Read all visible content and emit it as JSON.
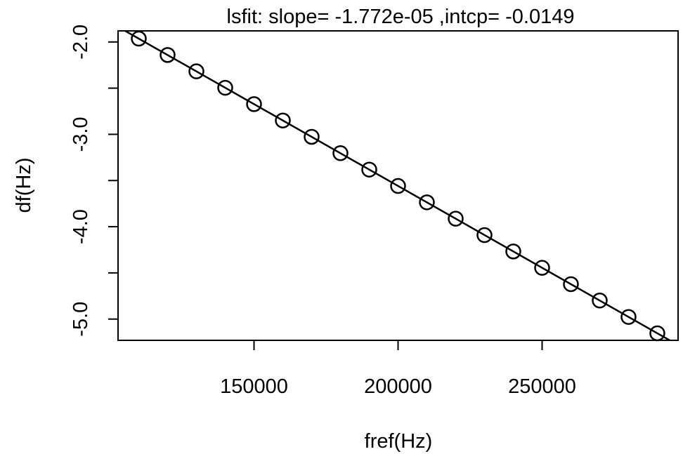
{
  "chart_data": {
    "type": "scatter",
    "title": "lsfit: slope= -1.772e-05 ,intcp= -0.0149",
    "xlabel": "fref(Hz)",
    "ylabel": "df(Hz)",
    "xlim": [
      102800,
      297200
    ],
    "ylim": [
      -5.23,
      -1.88
    ],
    "x_ticks": [
      150000,
      200000,
      250000
    ],
    "x_tick_labels": [
      "150000",
      "200000",
      "250000"
    ],
    "y_ticks": [
      -2.0,
      -2.5,
      -3.0,
      -3.5,
      -4.0,
      -4.5,
      -5.0
    ],
    "y_tick_labels": [
      "-2.0",
      "",
      "-3.0",
      "",
      "-4.0",
      "",
      "-5.0"
    ],
    "points": {
      "x": [
        110000,
        120000,
        130000,
        140000,
        150000,
        160000,
        170000,
        180000,
        190000,
        200000,
        210000,
        220000,
        230000,
        240000,
        250000,
        260000,
        270000,
        280000,
        290000
      ],
      "y": [
        -1.964,
        -2.141,
        -2.318,
        -2.496,
        -2.673,
        -2.85,
        -3.027,
        -3.204,
        -3.382,
        -3.559,
        -3.736,
        -3.913,
        -4.091,
        -4.268,
        -4.445,
        -4.622,
        -4.799,
        -4.977,
        -5.154
      ]
    },
    "fit_line": {
      "slope": -1.772e-05,
      "intercept": -0.0149
    },
    "grid": false,
    "legend": "none",
    "colors": {
      "line": "#000000",
      "points": "#000000",
      "background": "#ffffff"
    }
  }
}
